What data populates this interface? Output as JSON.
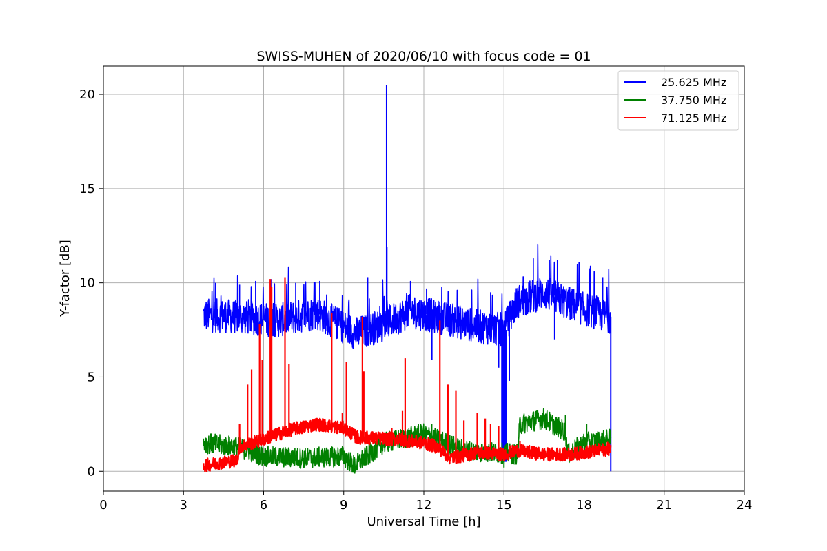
{
  "chart_data": {
    "type": "line",
    "title": "SWISS-MUHEN of 2020/06/10 with focus code = 01",
    "xlabel": "Universal Time [h]",
    "ylabel": "Y-factor [dB]",
    "xlim": [
      0,
      24
    ],
    "ylim": [
      -1.05,
      21.5
    ],
    "xticks": [
      0,
      3,
      6,
      9,
      12,
      15,
      18,
      21,
      24
    ],
    "yticks": [
      0,
      5,
      10,
      15,
      20
    ],
    "grid": true,
    "legend_position": "top-right",
    "series": [
      {
        "name": "25.625 MHz",
        "color": "#0000ff",
        "baseline": [
          [
            3.75,
            8.3
          ],
          [
            5.0,
            8.2
          ],
          [
            6.5,
            8.0
          ],
          [
            8.0,
            8.4
          ],
          [
            9.5,
            7.3
          ],
          [
            10.5,
            7.8
          ],
          [
            11.5,
            8.5
          ],
          [
            12.5,
            8.2
          ],
          [
            14.0,
            7.7
          ],
          [
            15.0,
            7.5
          ],
          [
            15.5,
            9.0
          ],
          [
            16.5,
            9.5
          ],
          [
            17.3,
            9.0
          ],
          [
            18.0,
            8.6
          ],
          [
            19.0,
            8.2
          ]
        ],
        "spikes": [
          [
            4.2,
            10.0
          ],
          [
            5.1,
            9.9
          ],
          [
            5.7,
            10.1
          ],
          [
            6.3,
            10.2
          ],
          [
            7.2,
            10.0
          ],
          [
            8.1,
            10.1
          ],
          [
            9.9,
            10.3
          ],
          [
            10.6,
            20.5
          ],
          [
            10.62,
            11.9
          ],
          [
            11.5,
            10.1
          ],
          [
            12.1,
            9.7
          ],
          [
            14.5,
            9.5
          ],
          [
            16.1,
            11.3
          ],
          [
            16.7,
            11.2
          ],
          [
            17.0,
            11.2
          ],
          [
            18.7,
            10.3
          ]
        ],
        "dips": [
          [
            12.3,
            5.9
          ],
          [
            14.8,
            5.5
          ],
          [
            15.0,
            0.5
          ],
          [
            15.2,
            4.8
          ],
          [
            16.9,
            7.0
          ],
          [
            19.0,
            0.0
          ]
        ]
      },
      {
        "name": "37.750 MHz",
        "color": "#008000",
        "baseline": [
          [
            3.75,
            1.5
          ],
          [
            5.0,
            1.3
          ],
          [
            6.0,
            0.8
          ],
          [
            7.5,
            0.7
          ],
          [
            9.0,
            0.8
          ],
          [
            9.4,
            0.3
          ],
          [
            10.5,
            1.5
          ],
          [
            12.0,
            2.0
          ],
          [
            13.5,
            1.1
          ],
          [
            14.5,
            1.0
          ],
          [
            15.5,
            0.9
          ],
          [
            15.6,
            2.5
          ],
          [
            16.5,
            2.8
          ],
          [
            17.3,
            2.1
          ],
          [
            17.4,
            0.9
          ],
          [
            18.0,
            1.5
          ],
          [
            19.0,
            1.7
          ]
        ],
        "spikes": [
          [
            12.3,
            2.5
          ],
          [
            16.2,
            3.2
          ],
          [
            17.3,
            3.0
          ],
          [
            18.1,
            2.5
          ]
        ],
        "dips": [
          [
            9.4,
            0.0
          ],
          [
            15.0,
            0.2
          ]
        ]
      },
      {
        "name": "71.125 MHz",
        "color": "#ff0000",
        "baseline": [
          [
            3.75,
            0.3
          ],
          [
            5.0,
            0.6
          ],
          [
            5.1,
            1.3
          ],
          [
            6.0,
            1.7
          ],
          [
            7.0,
            2.2
          ],
          [
            8.0,
            2.5
          ],
          [
            9.0,
            2.3
          ],
          [
            9.5,
            1.8
          ],
          [
            11.0,
            1.7
          ],
          [
            12.0,
            1.5
          ],
          [
            12.5,
            1.3
          ],
          [
            13.0,
            0.7
          ],
          [
            14.0,
            1.0
          ],
          [
            15.0,
            0.9
          ],
          [
            15.5,
            1.1
          ],
          [
            16.5,
            0.9
          ],
          [
            17.5,
            0.9
          ],
          [
            19.0,
            1.2
          ]
        ],
        "spikes": [
          [
            5.1,
            2.5
          ],
          [
            5.4,
            4.6
          ],
          [
            5.55,
            5.4
          ],
          [
            5.85,
            7.8
          ],
          [
            5.95,
            5.9
          ],
          [
            6.25,
            10.2
          ],
          [
            6.3,
            9.8
          ],
          [
            6.8,
            10.3
          ],
          [
            6.95,
            5.7
          ],
          [
            8.55,
            8.4
          ],
          [
            8.95,
            3.1
          ],
          [
            9.1,
            5.8
          ],
          [
            9.7,
            8.2
          ],
          [
            9.75,
            5.3
          ],
          [
            10.8,
            2.3
          ],
          [
            11.2,
            3.2
          ],
          [
            11.3,
            6.0
          ],
          [
            12.6,
            8.0
          ],
          [
            12.9,
            4.6
          ],
          [
            13.2,
            4.3
          ],
          [
            13.5,
            2.7
          ],
          [
            14.0,
            3.1
          ],
          [
            14.3,
            2.8
          ],
          [
            14.5,
            2.5
          ],
          [
            14.8,
            2.4
          ],
          [
            15.6,
            1.6
          ]
        ],
        "dips": []
      }
    ]
  }
}
